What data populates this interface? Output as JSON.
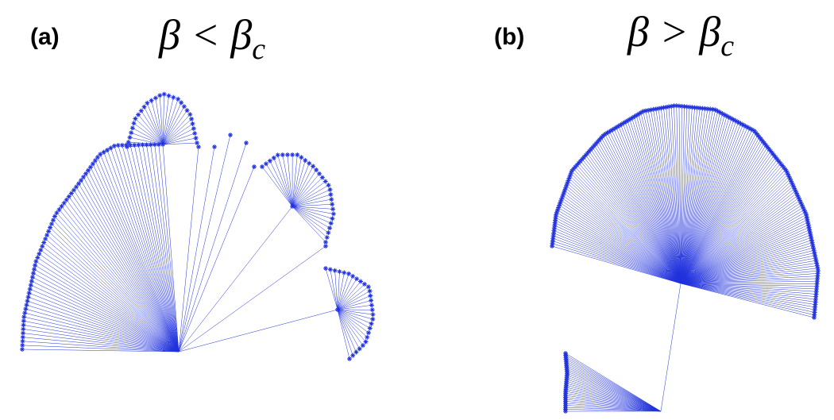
{
  "panels": [
    {
      "label": "(a)",
      "condition": "β < β",
      "subscript": "c"
    },
    {
      "label": "(b)",
      "condition": "β > β",
      "subscript": "c"
    }
  ]
}
